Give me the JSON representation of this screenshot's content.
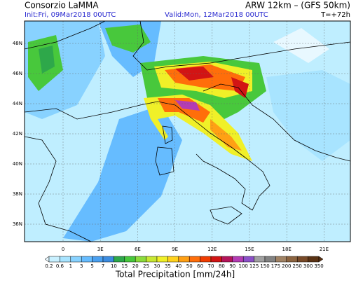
{
  "header": {
    "source": "Consorzio LaMMA",
    "model": "ARW 12km – (GFS 50km)",
    "init": "Init:Fri, 09Mar2018 00UTC",
    "valid": "Valid:Mon, 12Mar2018 00UTC",
    "lead": "T=+72h"
  },
  "map": {
    "lat_labels": [
      "48N",
      "46N",
      "44N",
      "42N",
      "40N",
      "38N",
      "36N"
    ],
    "lon_labels": [
      "0",
      "3E",
      "6E",
      "9E",
      "12E",
      "15E",
      "18E",
      "21E"
    ]
  },
  "legend": {
    "title": "Total Precipitation [mm/24h]",
    "items": [
      {
        "label": "0.2",
        "color": "#e8f8ff"
      },
      {
        "label": "0.6",
        "color": "#c8f0ff"
      },
      {
        "label": "1",
        "color": "#a8e4ff"
      },
      {
        "label": "3",
        "color": "#88d2ff"
      },
      {
        "label": "5",
        "color": "#66bcff"
      },
      {
        "label": "7",
        "color": "#4aa0f0"
      },
      {
        "label": "10",
        "color": "#3c8ce0"
      },
      {
        "label": "15",
        "color": "#2ea84a"
      },
      {
        "label": "20",
        "color": "#48c83c"
      },
      {
        "label": "25",
        "color": "#8cdc3c"
      },
      {
        "label": "30",
        "color": "#c8e832"
      },
      {
        "label": "35",
        "color": "#f0f028"
      },
      {
        "label": "40",
        "color": "#ffd21e"
      },
      {
        "label": "50",
        "color": "#ffa014"
      },
      {
        "label": "60",
        "color": "#ff6e0a"
      },
      {
        "label": "70",
        "color": "#f03c00"
      },
      {
        "label": "80",
        "color": "#d21414"
      },
      {
        "label": "90",
        "color": "#b4145a"
      },
      {
        "label": "100",
        "color": "#b43cb4"
      },
      {
        "label": "125",
        "color": "#8c50c8"
      },
      {
        "label": "150",
        "color": "#a0a0a0"
      },
      {
        "label": "175",
        "color": "#828282"
      },
      {
        "label": "200",
        "color": "#a08264"
      },
      {
        "label": "250",
        "color": "#8c6440"
      },
      {
        "label": "300",
        "color": "#784a28"
      },
      {
        "label": "350",
        "color": "#5a3214"
      }
    ]
  }
}
